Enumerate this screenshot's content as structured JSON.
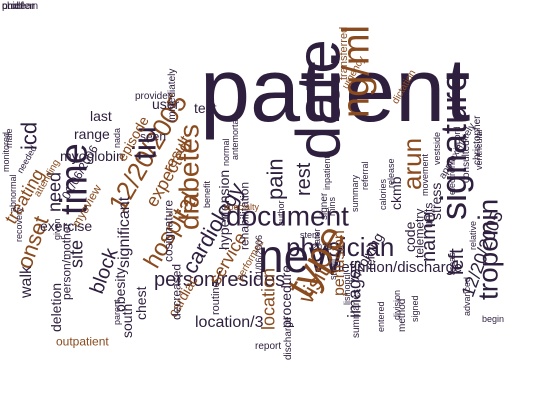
{
  "colors": {
    "dark": "#2e1f3e",
    "brown": "#8a4b1e",
    "grey": "#6e6e6e",
    "orange": "#b8651f"
  },
  "words": [
    {
      "text": "patient",
      "color": "dark",
      "emphasis": 1
    },
    {
      "text": "date",
      "color": "dark",
      "emphasis": 1
    },
    {
      "text": "ng/ml",
      "color": "brown",
      "emphasis": 1
    },
    {
      "text": "new",
      "color": "dark",
      "emphasis": 1
    },
    {
      "text": "time",
      "color": "dark",
      "emphasis": 1
    },
    {
      "text": "hospital",
      "color": "brown",
      "emphasis": 1
    },
    {
      "text": "12/20/2005",
      "color": "brown",
      "emphasis": 1
    },
    {
      "text": "diabetes",
      "color": "brown",
      "emphasis": 1
    },
    {
      "text": "document",
      "color": "dark",
      "emphasis": 1
    },
    {
      "text": "physician",
      "color": "dark",
      "emphasis": 1
    },
    {
      "text": "signature",
      "color": "dark",
      "emphasis": 1
    },
    {
      "text": "type",
      "color": "brown",
      "emphasis": 1
    },
    {
      "text": "visit",
      "color": "brown",
      "emphasis": 1
    },
    {
      "text": "tiu",
      "color": "dark",
      "emphasis": 1
    },
    {
      "text": "arun",
      "color": "brown",
      "emphasis": 1
    },
    {
      "text": "name",
      "color": "dark",
      "emphasis": 1
    },
    {
      "text": "troponin",
      "color": "dark",
      "emphasis": 1
    },
    {
      "text": "person/resides",
      "color": "dark",
      "emphasis": 1
    },
    {
      "text": "cardiology",
      "color": "dark",
      "emphasis": 1
    },
    {
      "text": "pain",
      "color": "dark",
      "emphasis": 1
    },
    {
      "text": "rest",
      "color": "dark",
      "emphasis": 1
    },
    {
      "text": "left",
      "color": "dark",
      "emphasis": 1
    },
    {
      "text": "stress",
      "color": "dark",
      "emphasis": 1
    },
    {
      "text": "icd",
      "color": "dark",
      "emphasis": 1
    },
    {
      "text": "need",
      "color": "dark",
      "emphasis": 1
    },
    {
      "text": "site",
      "color": "dark",
      "emphasis": 1
    },
    {
      "text": "onset",
      "color": "brown",
      "emphasis": 1
    },
    {
      "text": "block",
      "color": "dark",
      "emphasis": 1
    },
    {
      "text": "significant",
      "color": "dark",
      "emphasis": 1
    },
    {
      "text": "treating",
      "color": "brown",
      "emphasis": 1
    },
    {
      "text": "exercise",
      "color": "dark",
      "emphasis": 1
    },
    {
      "text": "expected",
      "color": "brown",
      "emphasis": 1
    },
    {
      "text": "result",
      "color": "brown",
      "emphasis": 1
    },
    {
      "text": "service",
      "color": "brown",
      "emphasis": 1
    },
    {
      "text": "definition/discharge",
      "color": "dark",
      "emphasis": 1
    },
    {
      "text": "perfusion",
      "color": "brown",
      "emphasis": 1
    },
    {
      "text": "images",
      "color": "dark",
      "emphasis": 1
    },
    {
      "text": "location",
      "color": "brown",
      "emphasis": 1
    },
    {
      "text": "procedure",
      "color": "dark",
      "emphasis": 1
    },
    {
      "text": "chest",
      "color": "dark",
      "emphasis": 1
    },
    {
      "text": "cardiac",
      "color": "brown",
      "emphasis": 1
    },
    {
      "text": "location/3",
      "color": "dark",
      "emphasis": 1
    },
    {
      "text": "hypertension",
      "color": "dark",
      "emphasis": 1
    },
    {
      "text": "rehabilitation",
      "color": "dark",
      "emphasis": 1
    },
    {
      "text": "involving",
      "color": "dark",
      "emphasis": 1
    },
    {
      "text": "ref",
      "color": "dark",
      "emphasis": 1
    },
    {
      "text": "code",
      "color": "dark",
      "emphasis": 1
    },
    {
      "text": "units",
      "color": "dark",
      "emphasis": 1
    },
    {
      "text": "ckmb",
      "color": "dark",
      "emphasis": 1
    },
    {
      "text": "telemetry",
      "color": "dark",
      "emphasis": 1
    },
    {
      "text": "12/20/2005",
      "color": "dark",
      "emphasis": 1
    },
    {
      "text": "myoglobin",
      "color": "dark",
      "emphasis": 1
    },
    {
      "text": "range",
      "color": "dark",
      "emphasis": 1
    },
    {
      "text": "last",
      "color": "dark",
      "emphasis": 1
    },
    {
      "text": "seen",
      "color": "dark",
      "emphasis": 1
    },
    {
      "text": "episode",
      "color": "brown",
      "emphasis": 1
    },
    {
      "text": "user",
      "color": "dark",
      "emphasis": 1
    },
    {
      "text": "test",
      "color": "dark",
      "emphasis": 1
    },
    {
      "text": "01/06/2006",
      "color": "dark",
      "emphasis": 1
    },
    {
      "text": "myoview",
      "color": "brown",
      "emphasis": 1
    },
    {
      "text": "walk",
      "color": "dark",
      "emphasis": 1
    },
    {
      "text": "south",
      "color": "dark",
      "emphasis": 1
    },
    {
      "text": "obesity",
      "color": "dark",
      "emphasis": 1
    },
    {
      "text": "deletion",
      "color": "dark",
      "emphasis": 1
    },
    {
      "text": "outpatient",
      "color": "brown",
      "emphasis": 1
    },
    {
      "text": "person/mother",
      "color": "dark",
      "emphasis": 1
    },
    {
      "text": "cosignature",
      "color": "dark",
      "emphasis": 1
    },
    {
      "text": "decreased",
      "color": "dark",
      "emphasis": 1
    },
    {
      "text": "report",
      "color": "dark",
      "emphasis": 1
    },
    {
      "text": "discharge",
      "color": "dark",
      "emphasis": 1
    },
    {
      "text": "summaries",
      "color": "dark",
      "emphasis": 1
    },
    {
      "text": "method",
      "color": "dark",
      "emphasis": 1
    },
    {
      "text": "signed",
      "color": "dark",
      "emphasis": 1
    },
    {
      "text": "entered",
      "color": "dark",
      "emphasis": 1
    },
    {
      "text": "stent",
      "color": "dark",
      "emphasis": 1
    },
    {
      "text": "later",
      "color": "dark",
      "emphasis": 1
    },
    {
      "text": "author",
      "color": "dark",
      "emphasis": 1
    },
    {
      "text": "consulted",
      "color": "dark",
      "emphasis": 1
    },
    {
      "text": "approximately",
      "color": "dark",
      "emphasis": 1
    },
    {
      "text": "movement",
      "color": "dark",
      "emphasis": 1
    },
    {
      "text": "urgency",
      "color": "brown",
      "emphasis": 1
    },
    {
      "text": "transferred",
      "color": "brown",
      "emphasis": 1
    },
    {
      "text": "dictation",
      "color": "brown",
      "emphasis": 1
    },
    {
      "text": "provider",
      "color": "dark",
      "emphasis": 1
    },
    {
      "text": "immediately",
      "color": "dark",
      "emphasis": 1
    },
    {
      "text": "needed",
      "color": "dark",
      "emphasis": 1
    },
    {
      "text": "attending",
      "color": "brown",
      "emphasis": 1
    },
    {
      "text": "recovery",
      "color": "dark",
      "emphasis": 1
    },
    {
      "text": "monitored",
      "color": "dark",
      "emphasis": 1
    },
    {
      "text": "male",
      "color": "dark",
      "emphasis": 1
    },
    {
      "text": "routine",
      "color": "dark",
      "emphasis": 1
    },
    {
      "text": "performed",
      "color": "brown",
      "emphasis": 1
    },
    {
      "text": "specialty",
      "color": "brown",
      "emphasis": 1
    },
    {
      "text": "signer",
      "color": "dark",
      "emphasis": 1
    },
    {
      "text": "lisinopril",
      "color": "dark",
      "emphasis": 1
    },
    {
      "text": "relative",
      "color": "dark",
      "emphasis": 1
    },
    {
      "text": "christopher",
      "color": "dark",
      "emphasis": 1
    },
    {
      "text": "record",
      "color": "dark",
      "emphasis": 1
    },
    {
      "text": "advanced",
      "color": "dark",
      "emphasis": 1
    },
    {
      "text": "begin",
      "color": "dark",
      "emphasis": 1
    },
    {
      "text": "areas",
      "color": "dark",
      "emphasis": 1
    },
    {
      "text": "given",
      "color": "dark",
      "emphasis": 1
    },
    {
      "text": "ventricular",
      "color": "dark",
      "emphasis": 1
    },
    {
      "text": "electronic",
      "color": "dark",
      "emphasis": 1
    },
    {
      "text": "parent",
      "color": "dark",
      "emphasis": 1
    },
    {
      "text": "abnormal",
      "color": "dark",
      "emphasis": 1
    },
    {
      "text": "vestside",
      "color": "dark",
      "emphasis": 1
    },
    {
      "text": "nada",
      "color": "dark",
      "emphasis": 1
    },
    {
      "text": "normal",
      "color": "dark",
      "emphasis": 1
    },
    {
      "text": "benefit",
      "color": "dark",
      "emphasis": 1
    },
    {
      "text": "antemortal",
      "color": "dark",
      "emphasis": 1
    },
    {
      "text": "01/06/2006",
      "color": "dark",
      "emphasis": 1
    },
    {
      "text": "2020",
      "color": "dark",
      "emphasis": 1
    },
    {
      "text": "mins",
      "color": "dark",
      "emphasis": 1
    },
    {
      "text": "smell",
      "color": "dark",
      "emphasis": 1
    },
    {
      "text": "inpatient",
      "color": "dark",
      "emphasis": 1
    },
    {
      "text": "summary",
      "color": "dark",
      "emphasis": 1
    },
    {
      "text": "calories",
      "color": "dark",
      "emphasis": 1
    },
    {
      "text": "division",
      "color": "dark",
      "emphasis": 1
    },
    {
      "text": "release",
      "color": "dark",
      "emphasis": 1
    },
    {
      "text": "referral",
      "color": "dark",
      "emphasis": 1
    },
    {
      "text": "nuclear",
      "color": "dark",
      "emphasis": 1
    },
    {
      "text": "chief",
      "color": "dark",
      "emphasis": 1
    },
    {
      "text": "problem",
      "color": "dark",
      "emphasis": 1
    }
  ]
}
